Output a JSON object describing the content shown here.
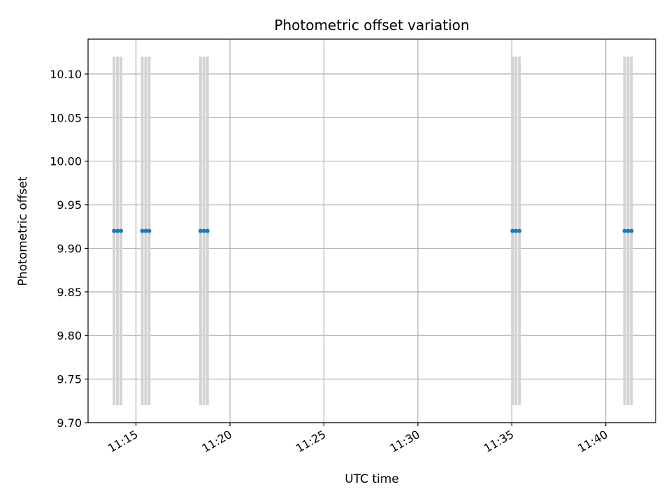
{
  "chart_data": {
    "type": "scatter",
    "title": "Photometric offset variation",
    "xlabel": "UTC time",
    "ylabel": "Photometric offset",
    "x_axis_kind": "time",
    "xlim": [
      "11:12:27",
      "11:42:39"
    ],
    "ylim": [
      9.7,
      10.14
    ],
    "xticks": [
      "11:15",
      "11:20",
      "11:25",
      "11:30",
      "11:35",
      "11:40"
    ],
    "yticks": [
      "9.70",
      "9.75",
      "9.80",
      "9.85",
      "9.90",
      "9.95",
      "10.00",
      "10.05",
      "10.10"
    ],
    "grid": true,
    "error_band": {
      "low": 9.72,
      "high": 10.12
    },
    "series": [
      {
        "points": [
          {
            "x": "11:13:50",
            "y": 9.92
          },
          {
            "x": "11:14:01",
            "y": 9.92
          },
          {
            "x": "11:14:12",
            "y": 9.92
          },
          {
            "x": "11:15:20",
            "y": 9.92
          },
          {
            "x": "11:15:31",
            "y": 9.92
          },
          {
            "x": "11:15:42",
            "y": 9.92
          },
          {
            "x": "11:18:26",
            "y": 9.92
          },
          {
            "x": "11:18:37",
            "y": 9.92
          },
          {
            "x": "11:18:48",
            "y": 9.92
          },
          {
            "x": "11:35:02",
            "y": 9.92
          },
          {
            "x": "11:35:13",
            "y": 9.92
          },
          {
            "x": "11:35:24",
            "y": 9.92
          },
          {
            "x": "11:41:00",
            "y": 9.92
          },
          {
            "x": "11:41:11",
            "y": 9.92
          },
          {
            "x": "11:41:22",
            "y": 9.92
          }
        ]
      }
    ],
    "colors": {
      "marker": "#1f77b4",
      "error_bar": "#d3d3d3",
      "grid": "#b0b0b0",
      "axes": "#000000"
    }
  }
}
